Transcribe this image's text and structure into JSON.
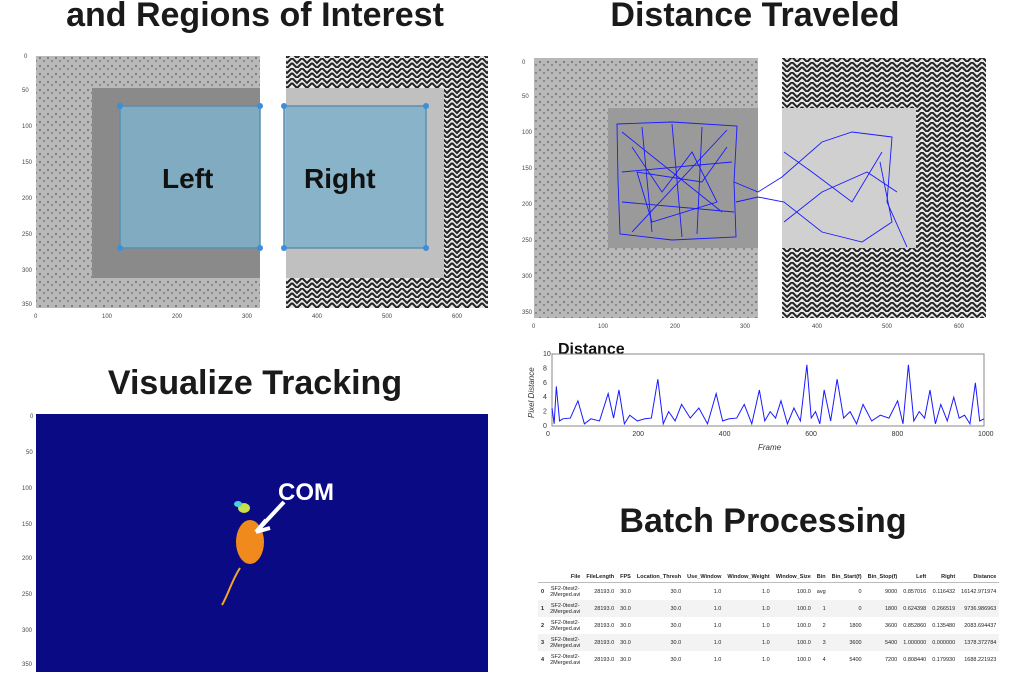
{
  "headings": {
    "roi": "and Regions of Interest",
    "distance": "Distance Traveled",
    "visualize": "Visualize Tracking",
    "batch": "Batch Processing"
  },
  "roi_panel": {
    "x_ticks": [
      "0",
      "100",
      "200",
      "300",
      "400",
      "500",
      "600"
    ],
    "y_ticks": [
      "0",
      "50",
      "100",
      "150",
      "200",
      "250",
      "300",
      "350"
    ],
    "regions": [
      "Left",
      "Right"
    ],
    "region_color": "#7fb0c9"
  },
  "track_panel": {
    "x_ticks": [
      "0",
      "100",
      "200",
      "300",
      "400",
      "500",
      "600"
    ],
    "y_ticks": [
      "0",
      "50",
      "100",
      "150",
      "200",
      "250",
      "300",
      "350"
    ],
    "track_color": "#1a1aff"
  },
  "visualize_panel": {
    "y_ticks": [
      "0",
      "50",
      "100",
      "150",
      "200",
      "250",
      "300",
      "350"
    ],
    "label": "COM",
    "background_color": "#0a0a85"
  },
  "chart_data": {
    "type": "line",
    "title": "Distance",
    "xlabel": "Frame",
    "ylabel": "Pixel Distance",
    "xlim": [
      0,
      1000
    ],
    "ylim": [
      0,
      10
    ],
    "x_ticks": [
      "0",
      "200",
      "400",
      "600",
      "800",
      "1000"
    ],
    "y_ticks": [
      "0",
      "2",
      "4",
      "6",
      "8",
      "10"
    ],
    "color": "#1a1aff",
    "grid": false,
    "legend": "none",
    "peaks": [
      {
        "x": 0,
        "y": 2.5
      },
      {
        "x": 10,
        "y": 5.5
      },
      {
        "x": 25,
        "y": 1.0
      },
      {
        "x": 60,
        "y": 3.5
      },
      {
        "x": 90,
        "y": 1.0
      },
      {
        "x": 130,
        "y": 4.5
      },
      {
        "x": 155,
        "y": 5.0
      },
      {
        "x": 180,
        "y": 1.5
      },
      {
        "x": 215,
        "y": 1.0
      },
      {
        "x": 245,
        "y": 6.5
      },
      {
        "x": 270,
        "y": 2.0
      },
      {
        "x": 300,
        "y": 3.0
      },
      {
        "x": 340,
        "y": 2.5
      },
      {
        "x": 380,
        "y": 4.5
      },
      {
        "x": 410,
        "y": 1.0
      },
      {
        "x": 445,
        "y": 3.0
      },
      {
        "x": 480,
        "y": 5.0
      },
      {
        "x": 505,
        "y": 2.0
      },
      {
        "x": 530,
        "y": 3.5
      },
      {
        "x": 560,
        "y": 2.5
      },
      {
        "x": 590,
        "y": 8.5
      },
      {
        "x": 610,
        "y": 2.0
      },
      {
        "x": 630,
        "y": 5.0
      },
      {
        "x": 660,
        "y": 6.5
      },
      {
        "x": 690,
        "y": 2.0
      },
      {
        "x": 720,
        "y": 3.0
      },
      {
        "x": 760,
        "y": 1.5
      },
      {
        "x": 800,
        "y": 3.5
      },
      {
        "x": 825,
        "y": 8.5
      },
      {
        "x": 850,
        "y": 2.0
      },
      {
        "x": 875,
        "y": 5.0
      },
      {
        "x": 900,
        "y": 3.0
      },
      {
        "x": 930,
        "y": 4.0
      },
      {
        "x": 955,
        "y": 1.5
      },
      {
        "x": 980,
        "y": 6.0
      },
      {
        "x": 1000,
        "y": 1.0
      }
    ]
  },
  "batch_table": {
    "headers": [
      "",
      "File",
      "FileLength",
      "FPS",
      "Location_Thresh",
      "Use_Window",
      "Window_Weight",
      "Window_Size",
      "Bin",
      "Bin_Start(f)",
      "Bin_Stop(f)",
      "Left",
      "Right",
      "Distance"
    ],
    "rows": [
      [
        "0",
        "SF2-0test2-2Merged.avi",
        "28193.0",
        "30.0",
        "30.0",
        "1.0",
        "1.0",
        "100.0",
        "avg",
        "0",
        "9000",
        "0.857016",
        "0.116432",
        "16142.971974"
      ],
      [
        "1",
        "SF2-0test2-2Merged.avi",
        "28193.0",
        "30.0",
        "30.0",
        "1.0",
        "1.0",
        "100.0",
        "1",
        "0",
        "1800",
        "0.624398",
        "0.266519",
        "9736.986963"
      ],
      [
        "2",
        "SF2-0test2-2Merged.avi",
        "28193.0",
        "30.0",
        "30.0",
        "1.0",
        "1.0",
        "100.0",
        "2",
        "1800",
        "3600",
        "0.852860",
        "0.135480",
        "2083.694437"
      ],
      [
        "3",
        "SF2-0test2-2Merged.avi",
        "28193.0",
        "30.0",
        "30.0",
        "1.0",
        "1.0",
        "100.0",
        "3",
        "3600",
        "5400",
        "1.000000",
        "0.000000",
        "1378.372784"
      ],
      [
        "4",
        "SF2-0test2-2Merged.avi",
        "28193.0",
        "30.0",
        "30.0",
        "1.0",
        "1.0",
        "100.0",
        "4",
        "5400",
        "7200",
        "0.808440",
        "0.179930",
        "1688.221923"
      ]
    ]
  }
}
